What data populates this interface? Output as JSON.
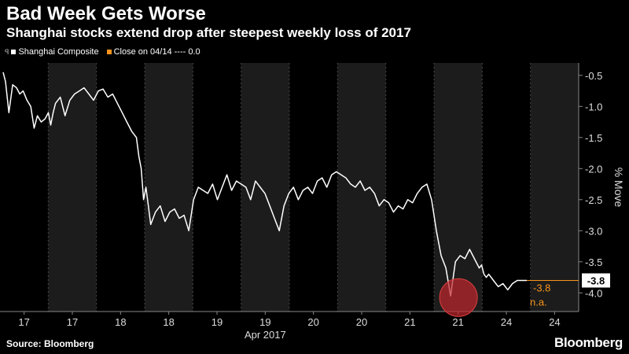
{
  "header": {
    "title": "Bad Week Gets Worse",
    "subtitle": "Shanghai stocks extend drop after steepest weekly loss of 2017"
  },
  "legend": {
    "series_label": "Shanghai Composite",
    "ref_label": "Close on 04/14 ---- 0.0"
  },
  "footer": {
    "source": "Source: Bloomberg",
    "brand": "Bloomberg"
  },
  "colors": {
    "background": "#000000",
    "line": "#ffffff",
    "accent": "#f7941d",
    "highlight": "#c1272d"
  },
  "chart_data": {
    "type": "line",
    "title": "Bad Week Gets Worse",
    "subtitle": "Shanghai stocks extend drop after steepest weekly loss of 2017",
    "ylabel": "% Move",
    "xlabel": "Apr 2017",
    "ylim": [
      -4.3,
      -0.3
    ],
    "y_ticks": [
      -0.5,
      -1.0,
      -1.5,
      -2.0,
      -2.5,
      -3.0,
      -3.5,
      -4.0
    ],
    "y_tick_labels": [
      "-0.5",
      "-1.0",
      "-1.5",
      "-2.0",
      "-2.5",
      "-3.0",
      "-3.5",
      "-4.0"
    ],
    "x_tick_labels": [
      "17",
      "17",
      "18",
      "18",
      "19",
      "19",
      "20",
      "20",
      "21",
      "21",
      "24",
      "24"
    ],
    "grid": false,
    "legend_position": "top-left",
    "series": [
      {
        "name": "Shanghai Composite",
        "x": [
          0,
          0.05,
          0.12,
          0.2,
          0.28,
          0.35,
          0.42,
          0.5,
          0.58,
          0.65,
          0.72,
          0.8,
          0.88,
          0.95,
          1.0,
          1.05,
          1.1,
          1.2,
          1.3,
          1.4,
          1.5,
          1.6,
          1.7,
          1.8,
          1.9,
          2.0,
          2.1,
          2.2,
          2.3,
          2.4,
          2.5,
          2.6,
          2.7,
          2.8,
          2.85,
          2.9,
          2.95,
          3.0,
          3.05,
          3.1,
          3.2,
          3.3,
          3.4,
          3.5,
          3.6,
          3.7,
          3.8,
          3.9,
          4.0,
          4.1,
          4.2,
          4.3,
          4.4,
          4.5,
          4.6,
          4.7,
          4.8,
          4.9,
          5.0,
          5.1,
          5.2,
          5.3,
          5.4,
          5.5,
          5.6,
          5.7,
          5.8,
          5.9,
          6.0,
          6.1,
          6.2,
          6.3,
          6.4,
          6.5,
          6.6,
          6.7,
          6.8,
          6.9,
          7.0,
          7.1,
          7.2,
          7.3,
          7.4,
          7.5,
          7.6,
          7.7,
          7.8,
          7.9,
          8.0,
          8.1,
          8.2,
          8.3,
          8.4,
          8.5,
          8.6,
          8.7,
          8.8,
          8.9,
          9.0,
          9.1,
          9.2,
          9.3,
          9.4,
          9.5,
          9.6,
          9.7,
          9.8,
          9.9,
          10.0,
          10.05,
          10.1,
          10.15,
          10.2,
          10.3,
          10.4,
          10.5,
          10.6,
          10.7,
          10.8,
          10.9,
          11.0
        ],
        "values": [
          -0.45,
          -0.6,
          -1.1,
          -0.65,
          -0.7,
          -0.8,
          -0.75,
          -0.9,
          -1.0,
          -1.35,
          -1.15,
          -1.25,
          -1.2,
          -1.1,
          -1.3,
          -1.1,
          -0.95,
          -0.85,
          -1.15,
          -0.9,
          -0.8,
          -0.75,
          -0.7,
          -0.8,
          -0.9,
          -0.75,
          -0.72,
          -0.85,
          -0.8,
          -0.95,
          -1.1,
          -1.25,
          -1.4,
          -1.5,
          -1.8,
          -2.0,
          -2.5,
          -2.3,
          -2.6,
          -2.9,
          -2.7,
          -2.6,
          -2.85,
          -2.7,
          -2.65,
          -2.8,
          -2.75,
          -3.0,
          -2.5,
          -2.3,
          -2.35,
          -2.4,
          -2.25,
          -2.5,
          -2.3,
          -2.1,
          -2.35,
          -2.2,
          -2.25,
          -2.3,
          -2.5,
          -2.2,
          -2.3,
          -2.4,
          -2.6,
          -2.8,
          -3.0,
          -2.6,
          -2.4,
          -2.3,
          -2.5,
          -2.35,
          -2.3,
          -2.4,
          -2.2,
          -2.15,
          -2.3,
          -2.1,
          -2.05,
          -2.1,
          -2.15,
          -2.25,
          -2.3,
          -2.2,
          -2.35,
          -2.3,
          -2.4,
          -2.6,
          -2.5,
          -2.55,
          -2.7,
          -2.6,
          -2.65,
          -2.5,
          -2.55,
          -2.4,
          -2.3,
          -2.25,
          -2.5,
          -3.0,
          -3.4,
          -3.6,
          -4.05,
          -3.5,
          -3.4,
          -3.45,
          -3.3,
          -3.45,
          -3.6,
          -3.55,
          -3.7,
          -3.75,
          -3.7,
          -3.8,
          -3.9,
          -3.85,
          -3.95,
          -3.85,
          -3.8,
          -3.8,
          -3.8
        ]
      }
    ],
    "annotations": [
      {
        "label": "-3.8",
        "value": -3.8
      },
      {
        "label": "n.a."
      }
    ],
    "end_value_label": "-3.8"
  }
}
